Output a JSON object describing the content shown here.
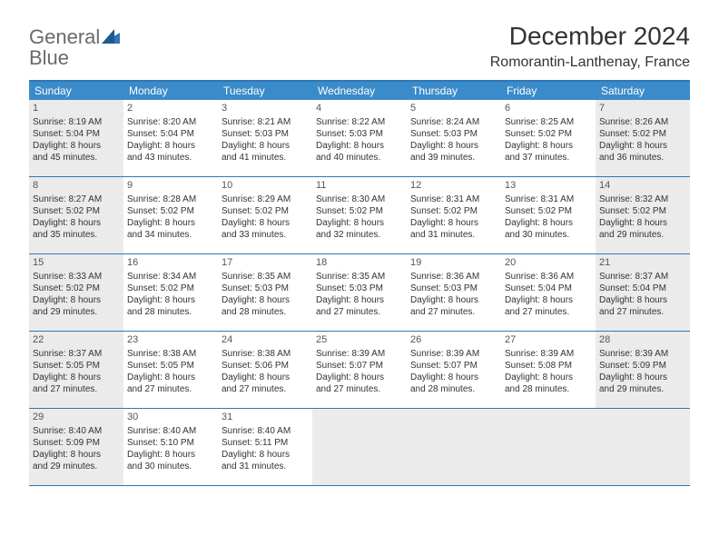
{
  "logo": {
    "word1": "General",
    "word2": "Blue"
  },
  "title": "December 2024",
  "location": "Romorantin-Lanthenay, France",
  "colors": {
    "header_bg": "#3a8bc9",
    "border": "#2f77b6",
    "shaded": "#ebebeb",
    "text": "#333333",
    "logo_gray": "#6a6a6a",
    "logo_blue": "#2f77b6"
  },
  "weekdays": [
    "Sunday",
    "Monday",
    "Tuesday",
    "Wednesday",
    "Thursday",
    "Friday",
    "Saturday"
  ],
  "weeks": [
    [
      {
        "n": "1",
        "shaded": true,
        "sunrise": "Sunrise: 8:19 AM",
        "sunset": "Sunset: 5:04 PM",
        "day1": "Daylight: 8 hours",
        "day2": "and 45 minutes."
      },
      {
        "n": "2",
        "shaded": false,
        "sunrise": "Sunrise: 8:20 AM",
        "sunset": "Sunset: 5:04 PM",
        "day1": "Daylight: 8 hours",
        "day2": "and 43 minutes."
      },
      {
        "n": "3",
        "shaded": false,
        "sunrise": "Sunrise: 8:21 AM",
        "sunset": "Sunset: 5:03 PM",
        "day1": "Daylight: 8 hours",
        "day2": "and 41 minutes."
      },
      {
        "n": "4",
        "shaded": false,
        "sunrise": "Sunrise: 8:22 AM",
        "sunset": "Sunset: 5:03 PM",
        "day1": "Daylight: 8 hours",
        "day2": "and 40 minutes."
      },
      {
        "n": "5",
        "shaded": false,
        "sunrise": "Sunrise: 8:24 AM",
        "sunset": "Sunset: 5:03 PM",
        "day1": "Daylight: 8 hours",
        "day2": "and 39 minutes."
      },
      {
        "n": "6",
        "shaded": false,
        "sunrise": "Sunrise: 8:25 AM",
        "sunset": "Sunset: 5:02 PM",
        "day1": "Daylight: 8 hours",
        "day2": "and 37 minutes."
      },
      {
        "n": "7",
        "shaded": true,
        "sunrise": "Sunrise: 8:26 AM",
        "sunset": "Sunset: 5:02 PM",
        "day1": "Daylight: 8 hours",
        "day2": "and 36 minutes."
      }
    ],
    [
      {
        "n": "8",
        "shaded": true,
        "sunrise": "Sunrise: 8:27 AM",
        "sunset": "Sunset: 5:02 PM",
        "day1": "Daylight: 8 hours",
        "day2": "and 35 minutes."
      },
      {
        "n": "9",
        "shaded": false,
        "sunrise": "Sunrise: 8:28 AM",
        "sunset": "Sunset: 5:02 PM",
        "day1": "Daylight: 8 hours",
        "day2": "and 34 minutes."
      },
      {
        "n": "10",
        "shaded": false,
        "sunrise": "Sunrise: 8:29 AM",
        "sunset": "Sunset: 5:02 PM",
        "day1": "Daylight: 8 hours",
        "day2": "and 33 minutes."
      },
      {
        "n": "11",
        "shaded": false,
        "sunrise": "Sunrise: 8:30 AM",
        "sunset": "Sunset: 5:02 PM",
        "day1": "Daylight: 8 hours",
        "day2": "and 32 minutes."
      },
      {
        "n": "12",
        "shaded": false,
        "sunrise": "Sunrise: 8:31 AM",
        "sunset": "Sunset: 5:02 PM",
        "day1": "Daylight: 8 hours",
        "day2": "and 31 minutes."
      },
      {
        "n": "13",
        "shaded": false,
        "sunrise": "Sunrise: 8:31 AM",
        "sunset": "Sunset: 5:02 PM",
        "day1": "Daylight: 8 hours",
        "day2": "and 30 minutes."
      },
      {
        "n": "14",
        "shaded": true,
        "sunrise": "Sunrise: 8:32 AM",
        "sunset": "Sunset: 5:02 PM",
        "day1": "Daylight: 8 hours",
        "day2": "and 29 minutes."
      }
    ],
    [
      {
        "n": "15",
        "shaded": true,
        "sunrise": "Sunrise: 8:33 AM",
        "sunset": "Sunset: 5:02 PM",
        "day1": "Daylight: 8 hours",
        "day2": "and 29 minutes."
      },
      {
        "n": "16",
        "shaded": false,
        "sunrise": "Sunrise: 8:34 AM",
        "sunset": "Sunset: 5:02 PM",
        "day1": "Daylight: 8 hours",
        "day2": "and 28 minutes."
      },
      {
        "n": "17",
        "shaded": false,
        "sunrise": "Sunrise: 8:35 AM",
        "sunset": "Sunset: 5:03 PM",
        "day1": "Daylight: 8 hours",
        "day2": "and 28 minutes."
      },
      {
        "n": "18",
        "shaded": false,
        "sunrise": "Sunrise: 8:35 AM",
        "sunset": "Sunset: 5:03 PM",
        "day1": "Daylight: 8 hours",
        "day2": "and 27 minutes."
      },
      {
        "n": "19",
        "shaded": false,
        "sunrise": "Sunrise: 8:36 AM",
        "sunset": "Sunset: 5:03 PM",
        "day1": "Daylight: 8 hours",
        "day2": "and 27 minutes."
      },
      {
        "n": "20",
        "shaded": false,
        "sunrise": "Sunrise: 8:36 AM",
        "sunset": "Sunset: 5:04 PM",
        "day1": "Daylight: 8 hours",
        "day2": "and 27 minutes."
      },
      {
        "n": "21",
        "shaded": true,
        "sunrise": "Sunrise: 8:37 AM",
        "sunset": "Sunset: 5:04 PM",
        "day1": "Daylight: 8 hours",
        "day2": "and 27 minutes."
      }
    ],
    [
      {
        "n": "22",
        "shaded": true,
        "sunrise": "Sunrise: 8:37 AM",
        "sunset": "Sunset: 5:05 PM",
        "day1": "Daylight: 8 hours",
        "day2": "and 27 minutes."
      },
      {
        "n": "23",
        "shaded": false,
        "sunrise": "Sunrise: 8:38 AM",
        "sunset": "Sunset: 5:05 PM",
        "day1": "Daylight: 8 hours",
        "day2": "and 27 minutes."
      },
      {
        "n": "24",
        "shaded": false,
        "sunrise": "Sunrise: 8:38 AM",
        "sunset": "Sunset: 5:06 PM",
        "day1": "Daylight: 8 hours",
        "day2": "and 27 minutes."
      },
      {
        "n": "25",
        "shaded": false,
        "sunrise": "Sunrise: 8:39 AM",
        "sunset": "Sunset: 5:07 PM",
        "day1": "Daylight: 8 hours",
        "day2": "and 27 minutes."
      },
      {
        "n": "26",
        "shaded": false,
        "sunrise": "Sunrise: 8:39 AM",
        "sunset": "Sunset: 5:07 PM",
        "day1": "Daylight: 8 hours",
        "day2": "and 28 minutes."
      },
      {
        "n": "27",
        "shaded": false,
        "sunrise": "Sunrise: 8:39 AM",
        "sunset": "Sunset: 5:08 PM",
        "day1": "Daylight: 8 hours",
        "day2": "and 28 minutes."
      },
      {
        "n": "28",
        "shaded": true,
        "sunrise": "Sunrise: 8:39 AM",
        "sunset": "Sunset: 5:09 PM",
        "day1": "Daylight: 8 hours",
        "day2": "and 29 minutes."
      }
    ],
    [
      {
        "n": "29",
        "shaded": true,
        "sunrise": "Sunrise: 8:40 AM",
        "sunset": "Sunset: 5:09 PM",
        "day1": "Daylight: 8 hours",
        "day2": "and 29 minutes."
      },
      {
        "n": "30",
        "shaded": false,
        "sunrise": "Sunrise: 8:40 AM",
        "sunset": "Sunset: 5:10 PM",
        "day1": "Daylight: 8 hours",
        "day2": "and 30 minutes."
      },
      {
        "n": "31",
        "shaded": false,
        "sunrise": "Sunrise: 8:40 AM",
        "sunset": "Sunset: 5:11 PM",
        "day1": "Daylight: 8 hours",
        "day2": "and 31 minutes."
      },
      {
        "empty": true
      },
      {
        "empty": true
      },
      {
        "empty": true
      },
      {
        "empty": true
      }
    ]
  ]
}
